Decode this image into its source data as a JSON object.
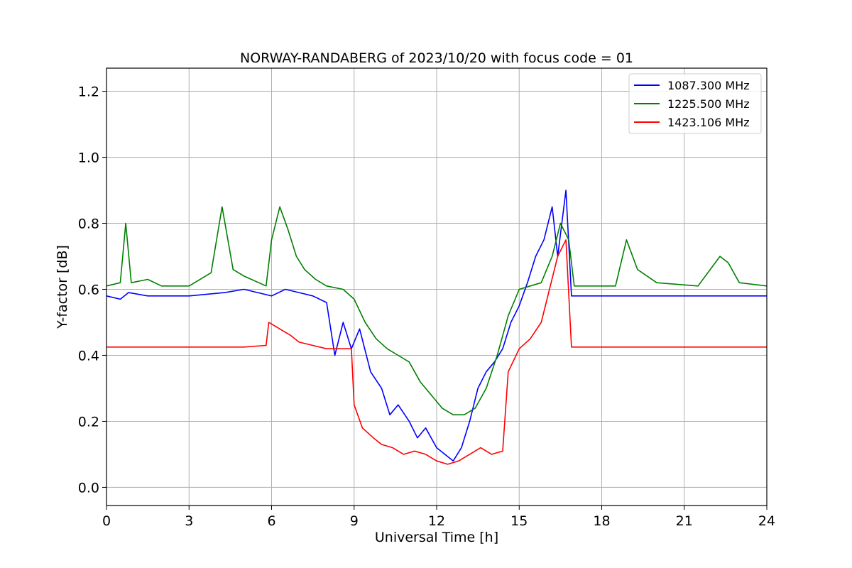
{
  "chart_data": {
    "type": "line",
    "title": "NORWAY-RANDABERG of 2023/10/20 with focus code = 01",
    "xlabel": "Universal Time [h]",
    "ylabel": "Y-factor [dB]",
    "xlim": [
      0,
      24
    ],
    "ylim": [
      -0.055,
      1.27
    ],
    "xticks": [
      0,
      3,
      6,
      9,
      12,
      15,
      18,
      21,
      24
    ],
    "yticks": [
      0.0,
      0.2,
      0.4,
      0.6,
      0.8,
      1.0,
      1.2
    ],
    "grid": true,
    "legend_position": "top-right",
    "series": [
      {
        "name": "1087.300 MHz",
        "color": "#0000ff",
        "x": [
          0,
          0.5,
          0.8,
          1.5,
          3.0,
          4.3,
          5.0,
          6.0,
          6.5,
          7.0,
          7.5,
          8.0,
          8.3,
          8.6,
          8.9,
          9.2,
          9.6,
          10.0,
          10.3,
          10.6,
          11.0,
          11.3,
          11.6,
          12.0,
          12.3,
          12.6,
          12.9,
          13.2,
          13.5,
          13.8,
          14.1,
          14.4,
          14.7,
          15.0,
          15.3,
          15.6,
          15.9,
          16.2,
          16.4,
          16.7,
          16.9,
          17.3,
          18.0,
          20.0,
          22.0,
          24.0
        ],
        "y": [
          0.58,
          0.57,
          0.59,
          0.58,
          0.58,
          0.59,
          0.6,
          0.58,
          0.6,
          0.59,
          0.58,
          0.56,
          0.4,
          0.5,
          0.42,
          0.48,
          0.35,
          0.3,
          0.22,
          0.25,
          0.2,
          0.15,
          0.18,
          0.12,
          0.1,
          0.08,
          0.12,
          0.2,
          0.3,
          0.35,
          0.38,
          0.42,
          0.5,
          0.55,
          0.62,
          0.7,
          0.75,
          0.85,
          0.7,
          0.9,
          0.58,
          0.58,
          0.58,
          0.58,
          0.58,
          0.58
        ]
      },
      {
        "name": "1225.500 MHz",
        "color": "#008000",
        "x": [
          0,
          0.5,
          0.7,
          0.9,
          1.5,
          2.0,
          3.0,
          3.8,
          4.2,
          4.6,
          5.0,
          5.8,
          6.0,
          6.3,
          6.6,
          6.9,
          7.2,
          7.6,
          8.0,
          8.6,
          9.0,
          9.4,
          9.8,
          10.2,
          10.6,
          11.0,
          11.4,
          11.8,
          12.2,
          12.6,
          13.0,
          13.4,
          13.8,
          14.2,
          14.6,
          15.0,
          15.4,
          15.8,
          16.2,
          16.5,
          16.8,
          17.0,
          17.5,
          18.5,
          18.9,
          19.3,
          20.0,
          21.5,
          22.3,
          22.6,
          23.0,
          24.0
        ],
        "y": [
          0.61,
          0.62,
          0.8,
          0.62,
          0.63,
          0.61,
          0.61,
          0.65,
          0.85,
          0.66,
          0.64,
          0.61,
          0.75,
          0.85,
          0.78,
          0.7,
          0.66,
          0.63,
          0.61,
          0.6,
          0.57,
          0.5,
          0.45,
          0.42,
          0.4,
          0.38,
          0.32,
          0.28,
          0.24,
          0.22,
          0.22,
          0.24,
          0.3,
          0.4,
          0.52,
          0.6,
          0.61,
          0.62,
          0.7,
          0.8,
          0.75,
          0.61,
          0.61,
          0.61,
          0.75,
          0.66,
          0.62,
          0.61,
          0.7,
          0.68,
          0.62,
          0.61
        ]
      },
      {
        "name": "1423.106 MHz",
        "color": "#ff0000",
        "x": [
          0,
          1.0,
          2.0,
          3.0,
          4.0,
          5.0,
          5.8,
          5.9,
          6.3,
          6.7,
          7.0,
          7.5,
          8.0,
          8.5,
          8.9,
          9.0,
          9.3,
          9.7,
          10.0,
          10.4,
          10.8,
          11.2,
          11.6,
          12.0,
          12.4,
          12.8,
          13.2,
          13.6,
          14.0,
          14.4,
          14.6,
          15.0,
          15.4,
          15.8,
          16.1,
          16.4,
          16.7,
          16.9,
          17.5,
          19.0,
          21.0,
          24.0
        ],
        "y": [
          0.425,
          0.425,
          0.425,
          0.425,
          0.425,
          0.425,
          0.43,
          0.5,
          0.48,
          0.46,
          0.44,
          0.43,
          0.42,
          0.42,
          0.42,
          0.25,
          0.18,
          0.15,
          0.13,
          0.12,
          0.1,
          0.11,
          0.1,
          0.08,
          0.07,
          0.08,
          0.1,
          0.12,
          0.1,
          0.11,
          0.35,
          0.42,
          0.45,
          0.5,
          0.6,
          0.7,
          0.75,
          0.425,
          0.425,
          0.425,
          0.425,
          0.425
        ]
      }
    ]
  }
}
